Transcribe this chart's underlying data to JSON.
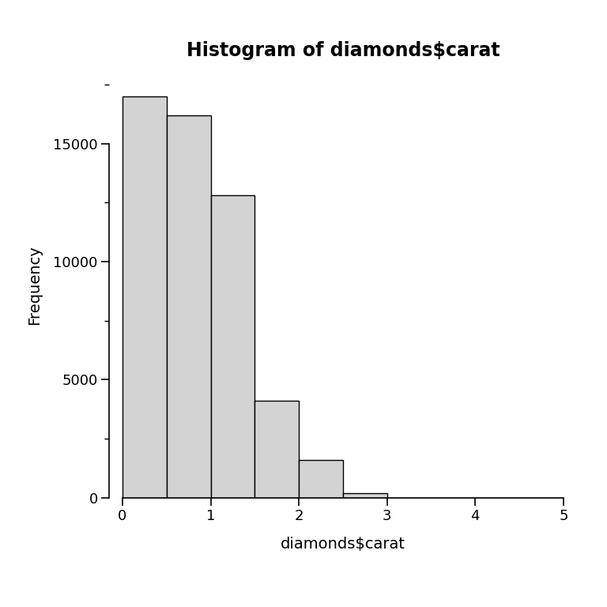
{
  "title": "Histogram of diamonds$carat",
  "xlabel": "diamonds$carat",
  "ylabel": "Frequency",
  "bar_edges": [
    0.0,
    0.5,
    1.0,
    1.5,
    2.0,
    2.5,
    3.0,
    3.5,
    4.0,
    4.5,
    5.0
  ],
  "bar_heights": [
    17000,
    16200,
    12800,
    4100,
    1600,
    180,
    0,
    0,
    0,
    0
  ],
  "bar_color": "#d3d3d3",
  "bar_edgecolor": "#000000",
  "bar_linewidth": 1.0,
  "xlim": [
    -0.15,
    5.15
  ],
  "ylim": [
    0,
    18000
  ],
  "xticks": [
    0,
    1,
    2,
    3,
    4,
    5
  ],
  "yticks": [
    0,
    5000,
    10000,
    15000
  ],
  "ytick_labels": [
    "0",
    "5000",
    "10000",
    "15000"
  ],
  "title_fontsize": 17,
  "axis_label_fontsize": 14,
  "tick_fontsize": 13,
  "title_fontweight": "bold",
  "background_color": "#ffffff",
  "figsize": [
    7.68,
    7.68
  ],
  "dpi": 100
}
